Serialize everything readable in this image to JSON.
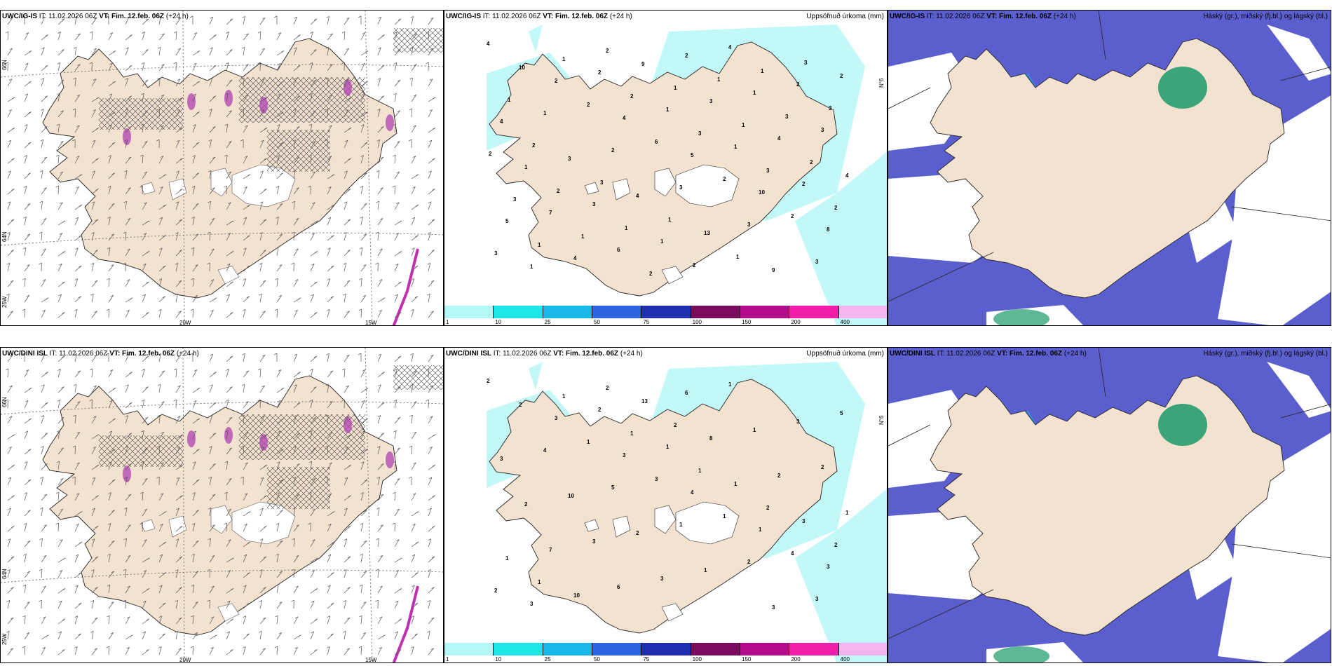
{
  "rows": [
    {
      "model": "UWC/IG-IS",
      "left_panel": {
        "model": "UWC/IG-IS",
        "it_label": "IT:",
        "it_value": "11.02.2026 06Z",
        "vt_label": "VT:",
        "vt_value": "Fim. 12.feb. 06Z",
        "lead": "(+24 h)",
        "lat_labels": [
          "66N",
          "64N"
        ],
        "lon_labels": [
          "25W",
          "20W",
          "15W"
        ]
      },
      "mid_panel": {
        "model": "UWC/IG-IS",
        "it_label": "IT:",
        "it_value": "11.02.2026 06Z",
        "vt_label": "VT:",
        "vt_value": "Fim. 12.feb. 06Z",
        "lead": "(+24 h)",
        "title_right": "Uppsöfnuð úrkoma (mm)",
        "edge_label": "N°6",
        "precip_values": [
          "4",
          "2",
          "4",
          "5",
          "10",
          "8",
          "1",
          "2",
          "1",
          "1",
          "2",
          "5",
          "4",
          "9",
          "3",
          "4",
          "4",
          "7",
          "6",
          "2",
          "1",
          "3",
          "1",
          "3",
          "1",
          "4",
          "2",
          "4",
          "3",
          "4",
          "13",
          "9",
          "2",
          "1",
          "2",
          "3",
          "3",
          "3",
          "10",
          "2",
          "6",
          "2",
          "2",
          "3",
          "1",
          "2",
          "3",
          "3",
          "2",
          "1",
          "2",
          "1",
          "1",
          "2",
          "3",
          "1",
          "2",
          "1",
          "3",
          "2",
          "2",
          "1",
          "2",
          "1",
          "3",
          "2",
          "3",
          "1",
          "1",
          "3",
          "1"
        ]
      },
      "right_panel": {
        "model": "UWC/IG-IS",
        "it_label": "IT:",
        "it_value": "11.02.2026 06Z",
        "vt_label": "VT:",
        "vt_value": "Fim. 12.feb. 06Z",
        "lead": "(+24 h)",
        "title_right": "Háský (gr.), miðský (fj.bl.) og lágský (bl.)"
      }
    },
    {
      "model": "UWC/DINI ISL",
      "left_panel": {
        "model": "UWC/DINI ISL",
        "it_label": "IT:",
        "it_value": "11.02.2026 06Z",
        "vt_label": "VT:",
        "vt_value": "Fim. 12.feb. 06Z",
        "lead": "(+24 h)",
        "lat_labels": [
          "66N",
          "64N"
        ],
        "lon_labels": [
          "25W",
          "20W",
          "15W"
        ]
      },
      "mid_panel": {
        "model": "UWC/DINI ISL",
        "it_label": "IT:",
        "it_value": "11.02.2026 06Z",
        "vt_label": "VT:",
        "vt_value": "Fim. 12.feb. 06Z",
        "lead": "(+24 h)",
        "title_right": "Uppsöfnuð úrkoma (mm)",
        "edge_label": "N°6",
        "precip_values": [
          "2",
          "3",
          "3",
          "4",
          "1",
          "3",
          "3",
          "2",
          "1",
          "1",
          "3",
          "1",
          "10",
          "13",
          "8",
          "2",
          "1",
          "7",
          "6",
          "6",
          "1",
          "2",
          "2",
          "3",
          "3",
          "1",
          "3",
          "3",
          "10",
          "2",
          "1",
          "3",
          "5",
          "4",
          "5",
          "1",
          "2",
          "3",
          "2",
          "1",
          "3",
          "1",
          "4",
          "2",
          "1",
          "1",
          "1",
          "2",
          "2",
          "1",
          "2",
          "2"
        ]
      },
      "right_panel": {
        "model": "UWC/DINI ISL",
        "it_label": "IT:",
        "it_value": "11.02.2026 06Z",
        "vt_label": "VT:",
        "vt_value": "Fim. 12.feb. 06Z",
        "lead": "(+24 h)",
        "title_right": "Háský (gr.), miðský (fj.bl.) og lágský (bl.)"
      }
    }
  ],
  "colorbar": {
    "ticks": [
      "1",
      "10",
      "25",
      "50",
      "75",
      "100",
      "150",
      "200",
      "400"
    ],
    "colors": [
      "#b3f7f7",
      "#1ee6e6",
      "#18b8e8",
      "#2b63e0",
      "#1e2fb0",
      "#7a0b5c",
      "#b30c8f",
      "#f01ea8",
      "#f5b3ef"
    ]
  },
  "colors": {
    "land": "#f3e2d0",
    "snow_land": "#ffffff",
    "precip_light": "#c2f8f8",
    "cloud_high": "#5b5fce",
    "cloud_blue": "#2f8fe6",
    "cloud_green": "#1a9a6a"
  }
}
